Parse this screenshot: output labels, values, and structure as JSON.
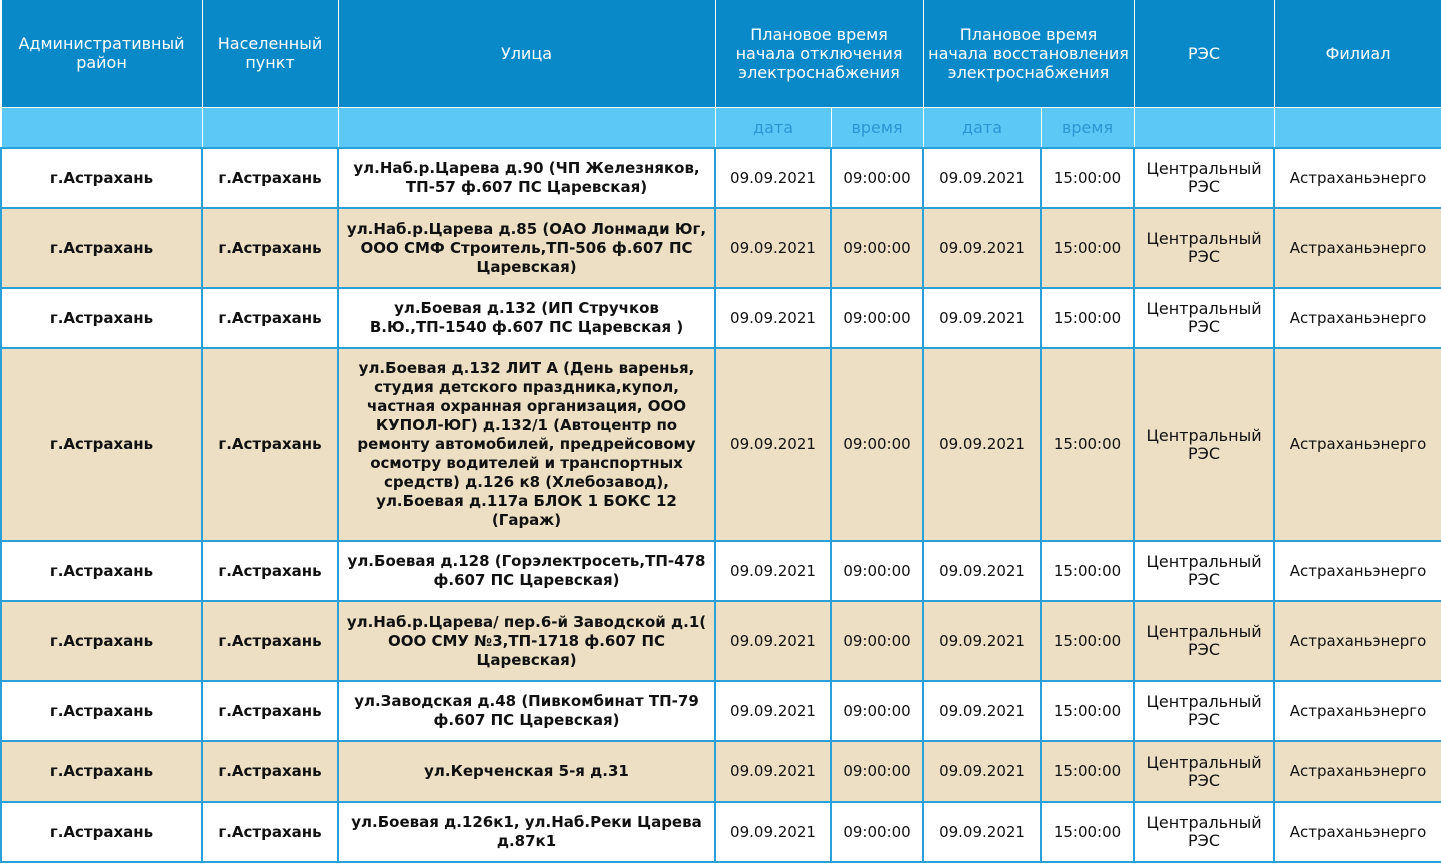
{
  "header": {
    "district": "Административный район",
    "locality": "Населенный пункт",
    "street": "Улица",
    "off_start": "Плановое время начала отключения электроснабжения",
    "restore_start": "Плановое время начала восстановления электроснабжения",
    "res": "РЭС",
    "branch": "Филиал",
    "date": "дата",
    "time": "время"
  },
  "colors": {
    "header": "#0a89c8",
    "subheader": "#5cc8f5",
    "alt_row": "#ecdfc4",
    "border": "#2b9fd8"
  },
  "rows": [
    {
      "district": "г.Астрахань",
      "locality": "г.Астрахань",
      "street": "ул.Наб.р.Царева д.90 (ЧП Железняков, ТП-57 ф.607 ПС Царевская)",
      "off_date": "09.09.2021",
      "off_time": "09:00:00",
      "on_date": "09.09.2021",
      "on_time": "15:00:00",
      "res": "Центральный РЭС",
      "branch": "Астраханьэнерго"
    },
    {
      "district": "г.Астрахань",
      "locality": "г.Астрахань",
      "street": "ул.Наб.р.Царева д.85 (ОАО Лонмади Юг, ООО СМФ Строитель,ТП-506 ф.607 ПС Царевская)",
      "off_date": "09.09.2021",
      "off_time": "09:00:00",
      "on_date": "09.09.2021",
      "on_time": "15:00:00",
      "res": "Центральный РЭС",
      "branch": "Астраханьэнерго"
    },
    {
      "district": "г.Астрахань",
      "locality": "г.Астрахань",
      "street": "ул.Боевая д.132 (ИП Стручков В.Ю.,ТП-1540 ф.607 ПС Царевская )",
      "off_date": "09.09.2021",
      "off_time": "09:00:00",
      "on_date": "09.09.2021",
      "on_time": "15:00:00",
      "res": "Центральный РЭС",
      "branch": "Астраханьэнерго"
    },
    {
      "district": "г.Астрахань",
      "locality": "г.Астрахань",
      "street": "ул.Боевая д.132 ЛИТ А (День варенья, студия детского праздника,купол, частная охранная организация, ООО КУПОЛ-ЮГ) д.132/1 (Автоцентр по ремонту автомобилей, предрейсовому осмотру водителей и транспортных средств) д.126 к8 (Хлебозавод), ул.Боевая д.117а БЛОК 1 БОКС 12 (Гараж)",
      "off_date": "09.09.2021",
      "off_time": "09:00:00",
      "on_date": "09.09.2021",
      "on_time": "15:00:00",
      "res": "Центральный РЭС",
      "branch": "Астраханьэнерго"
    },
    {
      "district": "г.Астрахань",
      "locality": "г.Астрахань",
      "street": "ул.Боевая д.128 (Горэлектросеть,ТП-478 ф.607 ПС Царевская)",
      "off_date": "09.09.2021",
      "off_time": "09:00:00",
      "on_date": "09.09.2021",
      "on_time": "15:00:00",
      "res": "Центральный РЭС",
      "branch": "Астраханьэнерго"
    },
    {
      "district": "г.Астрахань",
      "locality": "г.Астрахань",
      "street": "ул.Наб.р.Царева/ пер.6-й Заводской д.1( ООО СМУ №3,ТП-1718 ф.607 ПС Царевская)",
      "off_date": "09.09.2021",
      "off_time": "09:00:00",
      "on_date": "09.09.2021",
      "on_time": "15:00:00",
      "res": "Центральный РЭС",
      "branch": "Астраханьэнерго"
    },
    {
      "district": "г.Астрахань",
      "locality": "г.Астрахань",
      "street": "ул.Заводская д.48 (Пивкомбинат ТП-79 ф.607 ПС Царевская)",
      "off_date": "09.09.2021",
      "off_time": "09:00:00",
      "on_date": "09.09.2021",
      "on_time": "15:00:00",
      "res": "Центральный РЭС",
      "branch": "Астраханьэнерго"
    },
    {
      "district": "г.Астрахань",
      "locality": "г.Астрахань",
      "street": "ул.Керченская 5-я д.31",
      "off_date": "09.09.2021",
      "off_time": "09:00:00",
      "on_date": "09.09.2021",
      "on_time": "15:00:00",
      "res": "Центральный РЭС",
      "branch": "Астраханьэнерго"
    },
    {
      "district": "г.Астрахань",
      "locality": "г.Астрахань",
      "street": "ул.Боевая д.126к1, ул.Наб.Реки Царева д.87к1",
      "off_date": "09.09.2021",
      "off_time": "09:00:00",
      "on_date": "09.09.2021",
      "on_time": "15:00:00",
      "res": "Центральный РЭС",
      "branch": "Астраханьэнерго"
    }
  ]
}
